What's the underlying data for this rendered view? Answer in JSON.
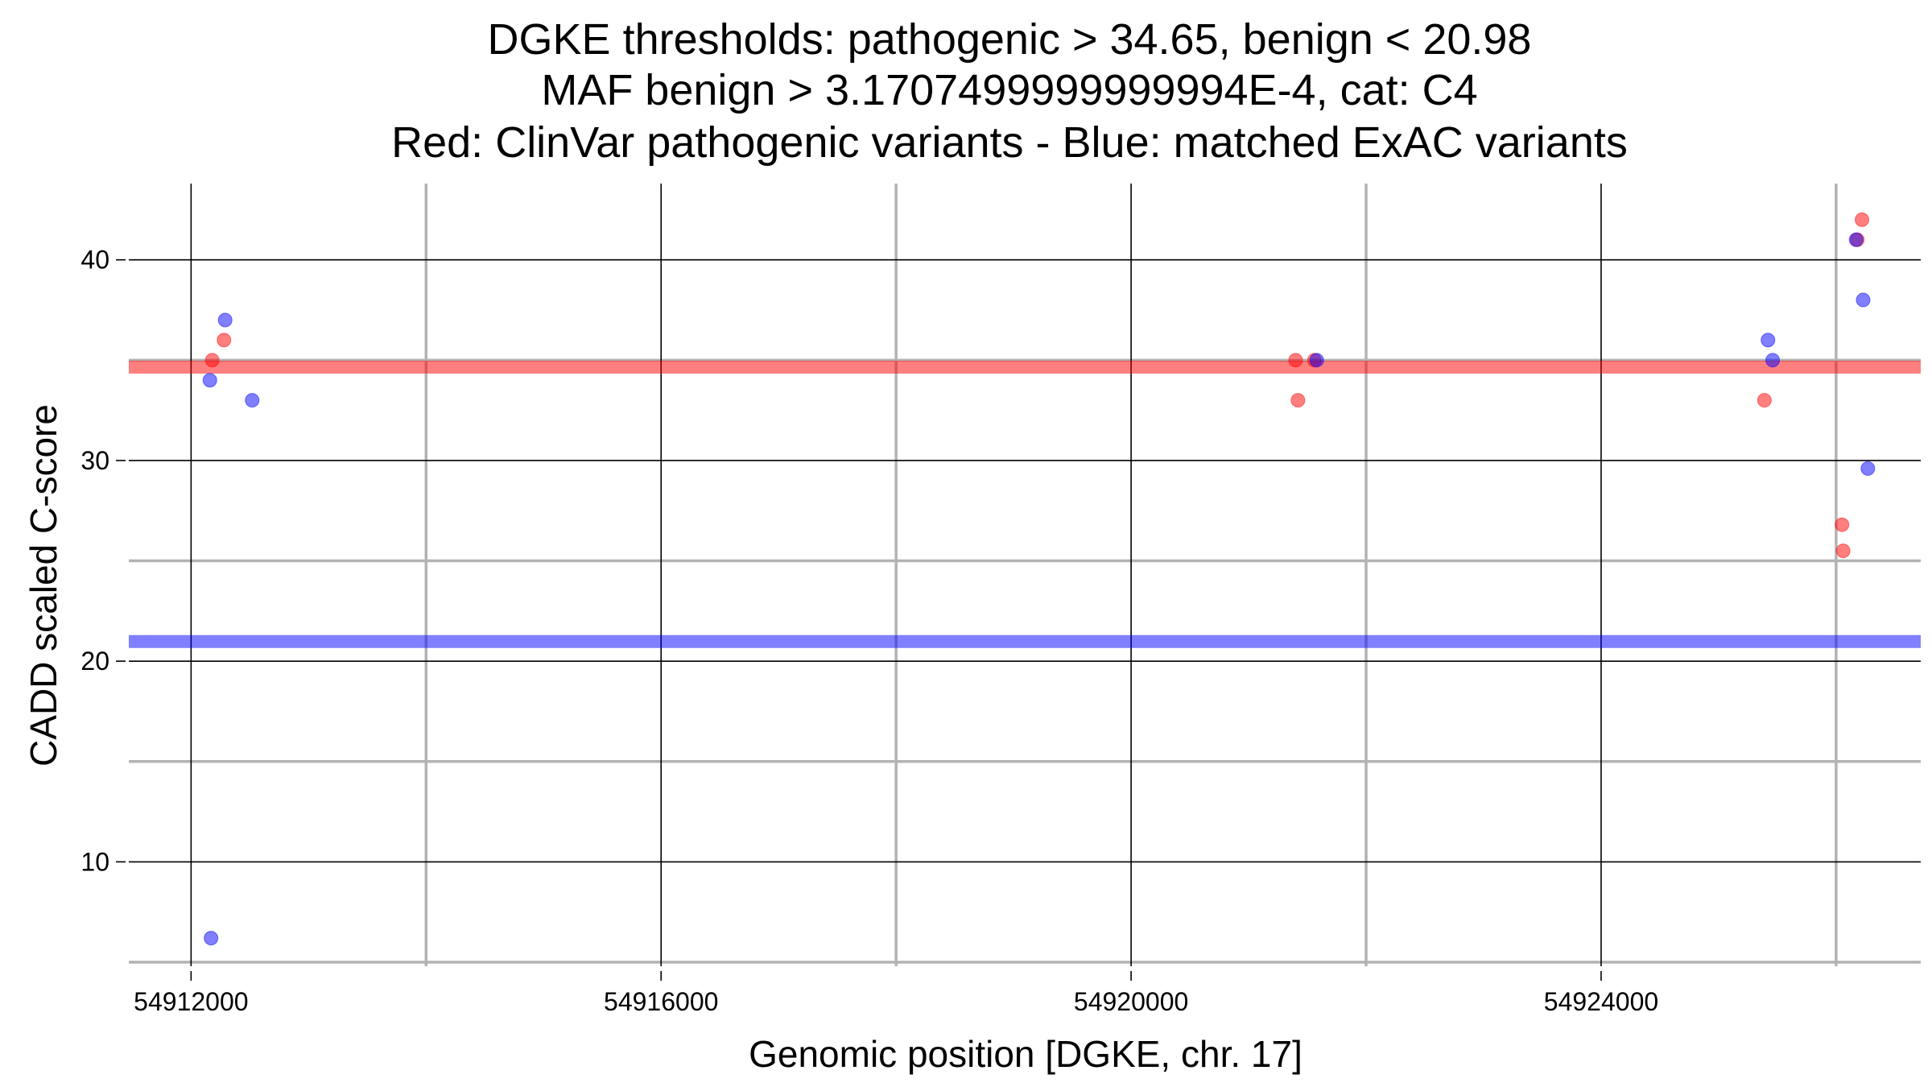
{
  "chart_data": {
    "type": "scatter",
    "title_lines": [
      "DGKE thresholds: pathogenic > 34.65, benign < 20.98",
      "MAF benign > 3.1707499999999994E-4, cat: C4",
      "Red: ClinVar pathogenic variants - Blue: matched ExAC variants"
    ],
    "xlabel": "Genomic position [DGKE, chr. 17]",
    "ylabel": "CADD scaled C-score",
    "xlim": [
      54911470,
      54926720
    ],
    "ylim": [
      4.8,
      43.8
    ],
    "x_major_ticks": [
      54912000,
      54916000,
      54920000,
      54924000
    ],
    "x_tick_labels": [
      "54912000",
      "54916000",
      "54920000",
      "54924000"
    ],
    "x_minor_gridlines": [
      54914000,
      54918000,
      54922000,
      54926000
    ],
    "y_major_ticks": [
      10,
      20,
      30,
      40
    ],
    "y_tick_labels": [
      "10",
      "20",
      "30",
      "40"
    ],
    "y_minor_gridlines": [
      5,
      15,
      25,
      35
    ],
    "grid": true,
    "thresholds": [
      {
        "name": "pathogenic",
        "value": 34.65,
        "color": "#ff0000"
      },
      {
        "name": "benign",
        "value": 20.98,
        "color": "#0000ff"
      }
    ],
    "series": [
      {
        "name": "ClinVar pathogenic variants",
        "color": "#ff0000",
        "points": [
          {
            "x": 54912180,
            "y": 35
          },
          {
            "x": 54912280,
            "y": 36
          },
          {
            "x": 54921400,
            "y": 35
          },
          {
            "x": 54921420,
            "y": 33
          },
          {
            "x": 54921560,
            "y": 35
          },
          {
            "x": 54925390,
            "y": 33
          },
          {
            "x": 54926050,
            "y": 26.8
          },
          {
            "x": 54926060,
            "y": 25.5
          },
          {
            "x": 54926180,
            "y": 41
          },
          {
            "x": 54926220,
            "y": 42
          }
        ]
      },
      {
        "name": "matched ExAC variants",
        "color": "#0000ff",
        "points": [
          {
            "x": 54912160,
            "y": 34
          },
          {
            "x": 54912290,
            "y": 37
          },
          {
            "x": 54912520,
            "y": 33
          },
          {
            "x": 54912170,
            "y": 6.2
          },
          {
            "x": 54921580,
            "y": 35
          },
          {
            "x": 54925420,
            "y": 36
          },
          {
            "x": 54925460,
            "y": 35
          },
          {
            "x": 54926170,
            "y": 41
          },
          {
            "x": 54926230,
            "y": 38
          },
          {
            "x": 54926270,
            "y": 29.6
          }
        ]
      }
    ]
  }
}
